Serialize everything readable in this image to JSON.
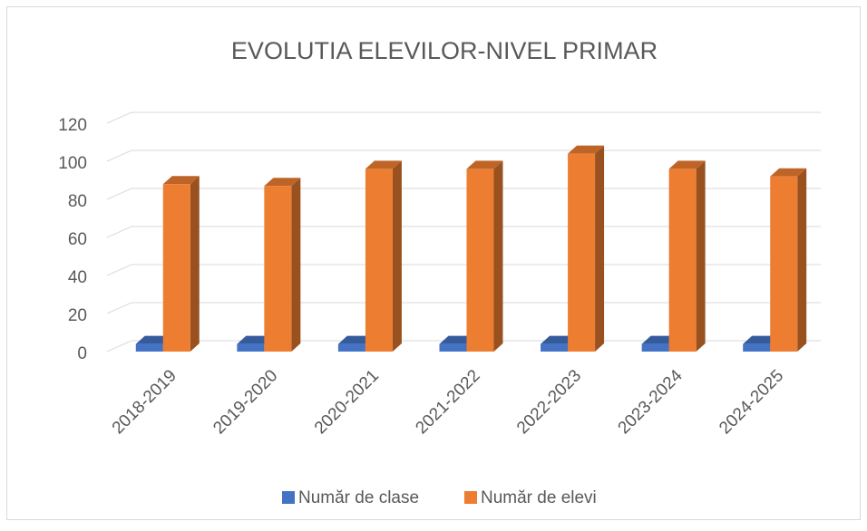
{
  "chart_data": {
    "type": "bar3d",
    "title": "EVOLUTIA  ELEVILOR-NIVEL PRIMAR",
    "categories": [
      "2018-2019",
      "2019-2020",
      "2020-2021",
      "2021-2022",
      "2022-2023",
      "2023-2024",
      "2024-2025"
    ],
    "series": [
      {
        "name": "Număr de clase",
        "color": "#4472c4",
        "values": [
          4,
          4,
          4,
          4,
          4,
          4,
          4
        ]
      },
      {
        "name": "Număr de elevi",
        "color": "#ed7d31",
        "values": [
          88,
          87,
          96,
          96,
          104,
          96,
          92
        ]
      }
    ],
    "ylim": [
      0,
      120
    ],
    "yticks": [
      0,
      20,
      40,
      60,
      80,
      100,
      120
    ],
    "grid": true,
    "legend": "bottom"
  }
}
